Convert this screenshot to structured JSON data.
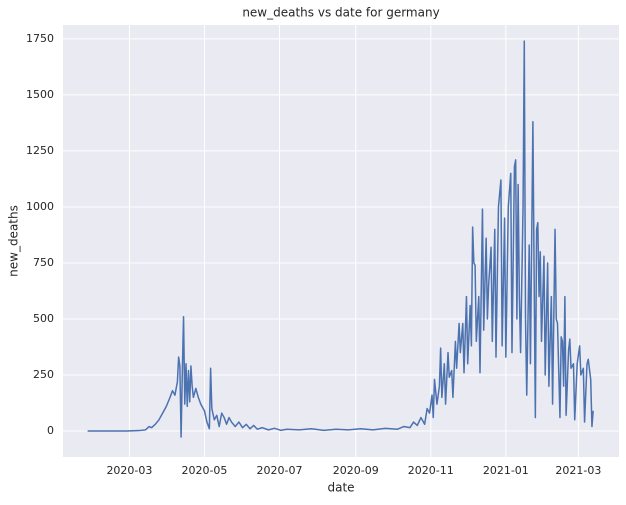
{
  "chart_data": {
    "type": "line",
    "title": "new_deaths vs date   for germany",
    "x_label": "date",
    "y_label": "new_deaths",
    "color": "#4c72b0",
    "grid": true,
    "xlim": [
      18268,
      18720
    ],
    "ylim": [
      -116,
      1812
    ],
    "xticks": [
      {
        "value": 18322,
        "label": "2020-03"
      },
      {
        "value": 18383,
        "label": "2020-05"
      },
      {
        "value": 18444,
        "label": "2020-07"
      },
      {
        "value": 18506,
        "label": "2020-09"
      },
      {
        "value": 18567,
        "label": "2020-11"
      },
      {
        "value": 18628,
        "label": "2021-01"
      },
      {
        "value": 18687,
        "label": "2021-03"
      }
    ],
    "yticks": [
      0,
      250,
      500,
      750,
      1000,
      1250,
      1500,
      1750
    ],
    "x": [
      18288,
      18320,
      18330,
      18335,
      18338,
      18340,
      18343,
      18346,
      18349,
      18352,
      18355,
      18357,
      18359,
      18361,
      18362,
      18363,
      18364,
      18365,
      18366,
      18367,
      18368,
      18369,
      18370,
      18371,
      18372,
      18373,
      18374,
      18376,
      18378,
      18380,
      18383,
      18385,
      18387,
      18388,
      18389,
      18391,
      18393,
      18395,
      18397,
      18399,
      18401,
      18403,
      18405,
      18408,
      18411,
      18414,
      18417,
      18420,
      18423,
      18426,
      18430,
      18435,
      18440,
      18445,
      18450,
      18460,
      18470,
      18480,
      18490,
      18500,
      18510,
      18520,
      18530,
      18540,
      18545,
      18550,
      18553,
      18556,
      18559,
      18562,
      18564,
      18566,
      18568,
      18569,
      18570,
      18572,
      18574,
      18575,
      18576,
      18578,
      18579,
      18581,
      18582,
      18584,
      18585,
      18587,
      18588,
      18590,
      18591,
      18593,
      18594,
      18596,
      18597,
      18599,
      18600,
      18601,
      18602,
      18603,
      18604,
      18606,
      18607,
      18609,
      18610,
      18612,
      18613,
      18614,
      18616,
      18617,
      18619,
      18620,
      18622,
      18624,
      18625,
      18627,
      18628,
      18630,
      18632,
      18633,
      18635,
      18636,
      18637,
      18638,
      18639,
      18640,
      18642,
      18643,
      18644,
      18645,
      18647,
      18648,
      18650,
      18651,
      18652,
      18653,
      18654,
      18655,
      18656,
      18657,
      18659,
      18660,
      18662,
      18663,
      18665,
      18666,
      18668,
      18669,
      18670,
      18672,
      18673,
      18674,
      18675,
      18676,
      18677,
      18679,
      18680,
      18681,
      18683,
      18684,
      18686,
      18688,
      18689,
      18691,
      18692,
      18694,
      18695,
      18697,
      18698,
      18699
    ],
    "values": [
      0,
      0,
      2,
      5,
      20,
      15,
      30,
      50,
      80,
      110,
      150,
      180,
      160,
      220,
      330,
      290,
      -27,
      260,
      510,
      120,
      300,
      110,
      270,
      130,
      290,
      200,
      150,
      190,
      150,
      120,
      90,
      40,
      10,
      280,
      100,
      50,
      70,
      20,
      80,
      60,
      30,
      60,
      40,
      20,
      40,
      15,
      30,
      10,
      25,
      8,
      15,
      5,
      12,
      3,
      8,
      5,
      10,
      3,
      8,
      5,
      10,
      5,
      12,
      8,
      20,
      15,
      40,
      25,
      60,
      30,
      100,
      80,
      160,
      60,
      230,
      120,
      200,
      370,
      150,
      300,
      120,
      350,
      240,
      270,
      150,
      400,
      280,
      480,
      350,
      480,
      260,
      600,
      300,
      560,
      380,
      910,
      750,
      740,
      400,
      600,
      260,
      990,
      450,
      860,
      500,
      650,
      820,
      400,
      900,
      330,
      1000,
      1120,
      380,
      950,
      330,
      1000,
      1150,
      350,
      1180,
      1210,
      500,
      1100,
      600,
      350,
      1000,
      1740,
      500,
      160,
      830,
      300,
      1380,
      700,
      60,
      900,
      930,
      600,
      800,
      400,
      780,
      250,
      750,
      200,
      600,
      120,
      900,
      500,
      480,
      60,
      420,
      400,
      200,
      600,
      70,
      360,
      410,
      280,
      300,
      50,
      300,
      380,
      250,
      280,
      40,
      300,
      320,
      230,
      20,
      90
    ]
  }
}
